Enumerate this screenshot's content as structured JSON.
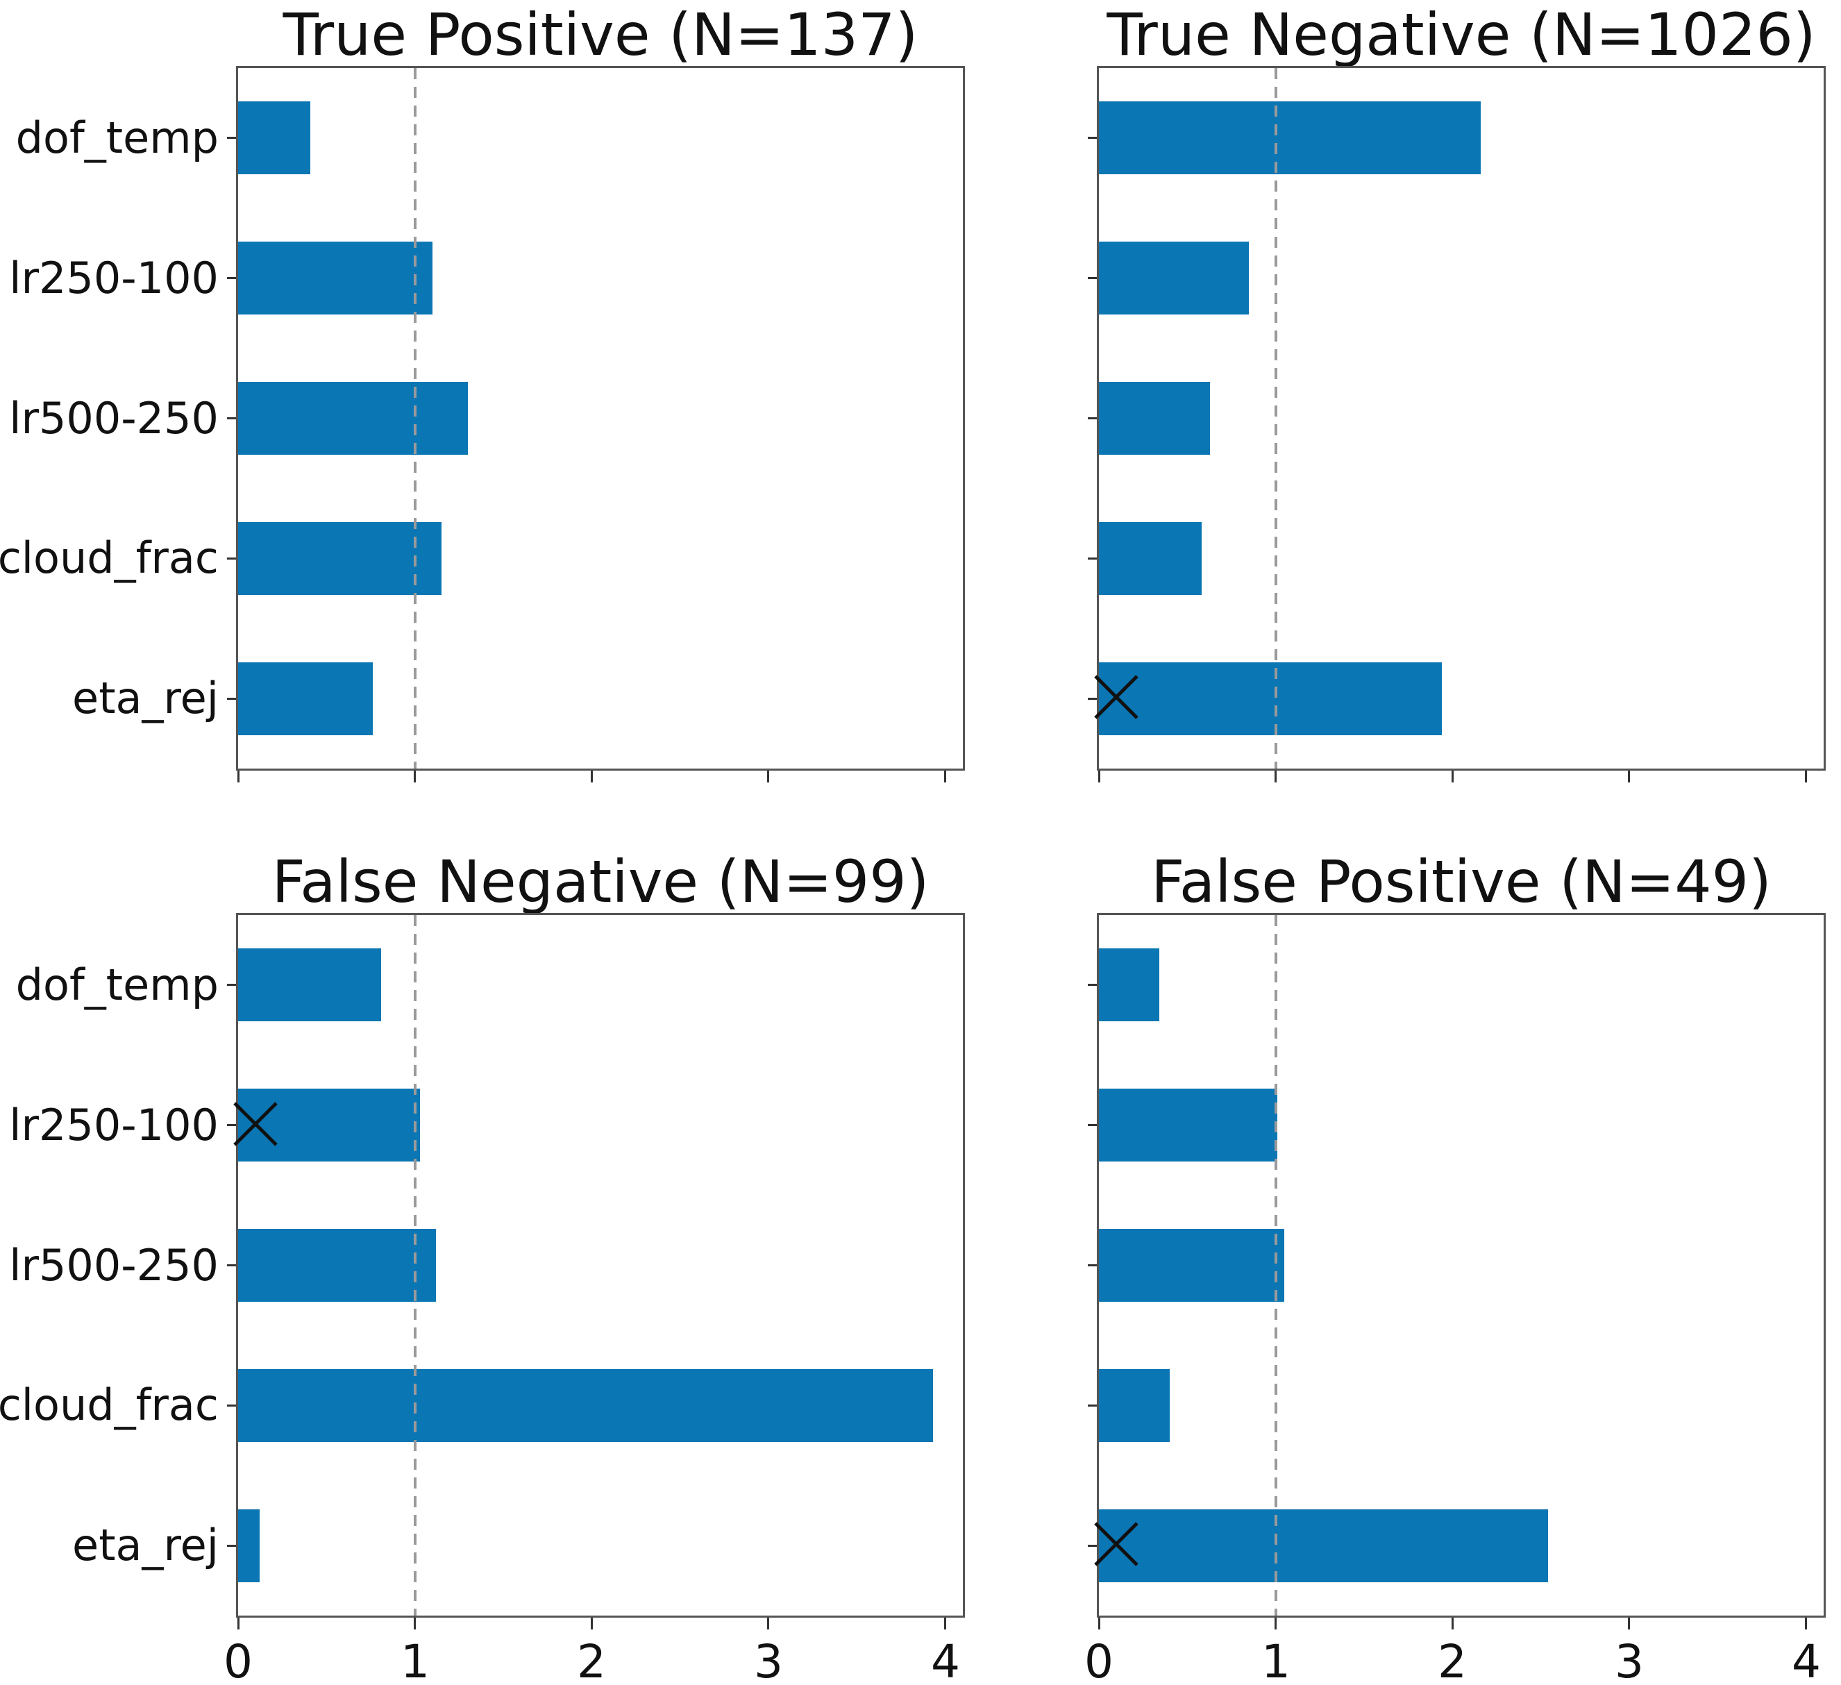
{
  "figure": {
    "background_color": "#ffffff",
    "bar_color": "#0b76b4",
    "spine_color": "#555555",
    "tick_color": "#333333",
    "dashed_line_color": "#9a9a9a",
    "marker_color": "#111111",
    "text_color": "#111111"
  },
  "chart_data": [
    {
      "type": "bar",
      "orientation": "horizontal",
      "title": "True Positive (N=137)",
      "sample_size": 137,
      "categories": [
        "dof_temp",
        "lr250-100",
        "lr500-250",
        "cloud_frac",
        "eta_rej"
      ],
      "values": [
        0.41,
        1.1,
        1.3,
        1.15,
        0.76
      ],
      "xlim": [
        0,
        4.1
      ],
      "xticks": [
        "0",
        "1",
        "2",
        "3",
        "4"
      ],
      "xtick_values": [
        0,
        1,
        2,
        3,
        4
      ],
      "reference_line_x": 1,
      "show_xtick_labels": false,
      "show_category_labels": true,
      "markers": []
    },
    {
      "type": "bar",
      "orientation": "horizontal",
      "title": "True Negative (N=1026)",
      "sample_size": 1026,
      "categories": [
        "dof_temp",
        "lr250-100",
        "lr500-250",
        "cloud_frac",
        "eta_rej"
      ],
      "values": [
        2.16,
        0.85,
        0.63,
        0.58,
        1.94
      ],
      "xlim": [
        0,
        4.1
      ],
      "xticks": [
        "0",
        "1",
        "2",
        "3",
        "4"
      ],
      "xtick_values": [
        0,
        1,
        2,
        3,
        4
      ],
      "reference_line_x": 1,
      "show_xtick_labels": false,
      "show_category_labels": false,
      "markers": [
        {
          "category": "eta_rej",
          "x": 0.1,
          "symbol": "x"
        }
      ]
    },
    {
      "type": "bar",
      "orientation": "horizontal",
      "title": "False Negative (N=99)",
      "sample_size": 99,
      "categories": [
        "dof_temp",
        "lr250-100",
        "lr500-250",
        "cloud_frac",
        "eta_rej"
      ],
      "values": [
        0.81,
        1.03,
        1.12,
        3.93,
        0.12
      ],
      "xlim": [
        0,
        4.1
      ],
      "xticks": [
        "0",
        "1",
        "2",
        "3",
        "4"
      ],
      "xtick_values": [
        0,
        1,
        2,
        3,
        4
      ],
      "reference_line_x": 1,
      "show_xtick_labels": true,
      "show_category_labels": true,
      "markers": [
        {
          "category": "lr250-100",
          "x": 0.1,
          "symbol": "x"
        }
      ]
    },
    {
      "type": "bar",
      "orientation": "horizontal",
      "title": "False Positive (N=49)",
      "sample_size": 49,
      "categories": [
        "dof_temp",
        "lr250-100",
        "lr500-250",
        "cloud_frac",
        "eta_rej"
      ],
      "values": [
        0.34,
        1.01,
        1.05,
        0.4,
        2.54
      ],
      "xlim": [
        0,
        4.1
      ],
      "xticks": [
        "0",
        "1",
        "2",
        "3",
        "4"
      ],
      "xtick_values": [
        0,
        1,
        2,
        3,
        4
      ],
      "reference_line_x": 1,
      "show_xtick_labels": true,
      "show_category_labels": false,
      "markers": [
        {
          "category": "eta_rej",
          "x": 0.1,
          "symbol": "x"
        }
      ]
    }
  ]
}
